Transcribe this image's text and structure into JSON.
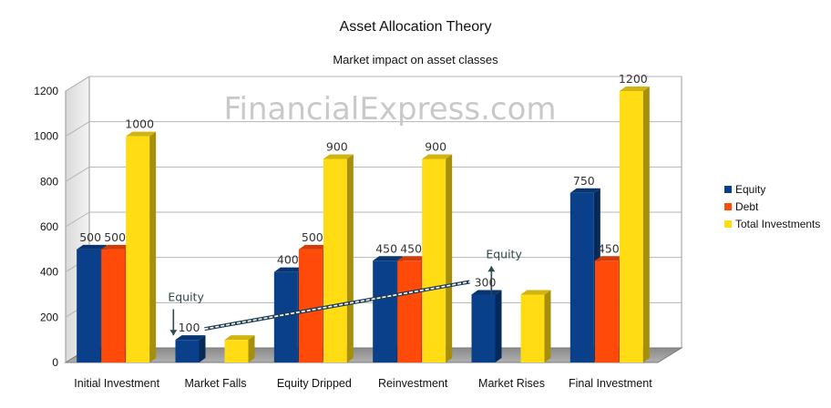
{
  "chart_data": {
    "type": "bar",
    "title": "Asset Allocation Theory",
    "subtitle": "Market impact on asset classes",
    "watermark": "FinancialExpress.com",
    "categories": [
      "Initial Investment",
      "Market Falls",
      "Equity Dripped",
      "Reinvestment",
      "Market Rises",
      "Final Investment"
    ],
    "series": [
      {
        "name": "Equity",
        "color": "#0a3f8a",
        "values": [
          500,
          100,
          400,
          450,
          300,
          750
        ],
        "data_labels": [
          "500",
          "100",
          "400",
          "450",
          "300",
          "750"
        ]
      },
      {
        "name": "Debt",
        "color": "#ff4a0a",
        "values": [
          500,
          null,
          500,
          450,
          null,
          450
        ],
        "data_labels": [
          "500",
          "",
          "500",
          "450",
          "",
          "450"
        ]
      },
      {
        "name": "Total Investments",
        "color": "#ffdc14",
        "values": [
          1000,
          100,
          900,
          900,
          300,
          1200
        ],
        "data_labels": [
          "1000",
          "",
          "900",
          "900",
          "",
          "1200"
        ]
      }
    ],
    "yticks": [
      "0",
      "200",
      "400",
      "600",
      "800",
      "1000",
      "1200"
    ],
    "ylim": [
      0,
      1200
    ],
    "grid": true,
    "legend": "right",
    "annotations": [
      {
        "text": "Equity",
        "category": "Market Falls",
        "arrow": "down"
      },
      {
        "text": "Equity",
        "category": "Market Rises",
        "arrow": "up"
      }
    ],
    "trend_line": {
      "from_category": "Market Falls",
      "to_category": "Market Rises",
      "style": "dashed"
    }
  }
}
